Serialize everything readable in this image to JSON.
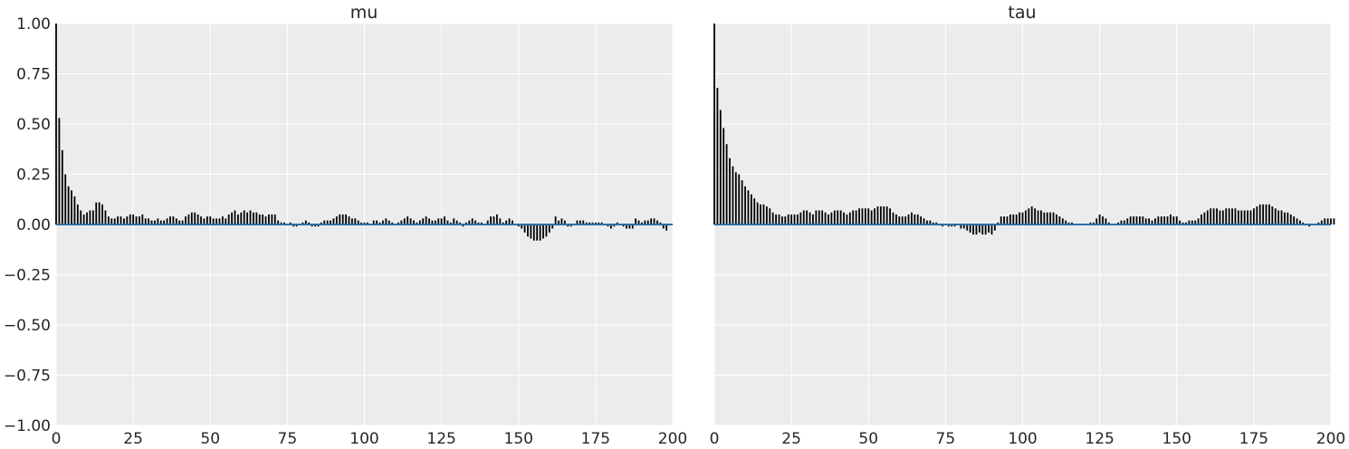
{
  "chart_data": [
    {
      "type": "bar",
      "title": "mu",
      "xlabel": "",
      "ylabel": "",
      "xlim": [
        0,
        200
      ],
      "ylim": [
        -1.0,
        1.0
      ],
      "xticks": [
        "0",
        "25",
        "50",
        "75",
        "100",
        "125",
        "150",
        "175",
        "200"
      ],
      "yticks": [
        "1.00",
        "0.75",
        "0.50",
        "0.25",
        "0.00",
        "−0.25",
        "−0.50",
        "−0.75",
        "−1.00"
      ],
      "grid": true,
      "lags_start": 0,
      "values": [
        1.0,
        0.53,
        0.37,
        0.25,
        0.19,
        0.17,
        0.14,
        0.1,
        0.07,
        0.05,
        0.06,
        0.07,
        0.07,
        0.11,
        0.11,
        0.1,
        0.07,
        0.04,
        0.03,
        0.03,
        0.04,
        0.04,
        0.03,
        0.04,
        0.05,
        0.05,
        0.04,
        0.04,
        0.05,
        0.03,
        0.03,
        0.02,
        0.02,
        0.03,
        0.02,
        0.02,
        0.03,
        0.04,
        0.04,
        0.03,
        0.02,
        0.02,
        0.04,
        0.05,
        0.06,
        0.06,
        0.05,
        0.04,
        0.03,
        0.04,
        0.04,
        0.03,
        0.03,
        0.03,
        0.04,
        0.03,
        0.05,
        0.06,
        0.07,
        0.05,
        0.06,
        0.07,
        0.06,
        0.07,
        0.06,
        0.06,
        0.05,
        0.05,
        0.04,
        0.05,
        0.05,
        0.05,
        0.02,
        0.01,
        0.01,
        0.0,
        0.01,
        -0.01,
        -0.01,
        0.0,
        0.01,
        0.02,
        0.01,
        -0.01,
        -0.01,
        -0.01,
        0.01,
        0.02,
        0.02,
        0.02,
        0.03,
        0.04,
        0.05,
        0.05,
        0.05,
        0.04,
        0.03,
        0.03,
        0.02,
        0.01,
        0.01,
        0.01,
        0.0,
        0.02,
        0.02,
        0.01,
        0.02,
        0.03,
        0.02,
        0.01,
        0.0,
        0.01,
        0.02,
        0.03,
        0.04,
        0.03,
        0.02,
        0.01,
        0.02,
        0.03,
        0.04,
        0.03,
        0.02,
        0.02,
        0.03,
        0.03,
        0.04,
        0.02,
        0.01,
        0.03,
        0.02,
        0.01,
        -0.01,
        0.01,
        0.02,
        0.03,
        0.02,
        0.01,
        0.01,
        0.0,
        0.02,
        0.04,
        0.04,
        0.05,
        0.03,
        0.01,
        0.02,
        0.03,
        0.02,
        0.0,
        -0.01,
        -0.02,
        -0.04,
        -0.06,
        -0.07,
        -0.08,
        -0.08,
        -0.08,
        -0.07,
        -0.06,
        -0.04,
        -0.02,
        0.04,
        0.02,
        0.03,
        0.02,
        -0.01,
        -0.01,
        0.0,
        0.02,
        0.02,
        0.02,
        0.01,
        0.01,
        0.01,
        0.01,
        0.01,
        0.01,
        0.0,
        -0.01,
        -0.02,
        -0.01,
        0.01,
        0.0,
        -0.01,
        -0.02,
        -0.02,
        -0.02,
        0.03,
        0.02,
        0.01,
        0.02,
        0.02,
        0.03,
        0.03,
        0.02,
        0.01,
        -0.02,
        -0.03
      ]
    },
    {
      "type": "bar",
      "title": "tau",
      "xlabel": "",
      "ylabel": "",
      "xlim": [
        0,
        200
      ],
      "ylim": [
        -1.0,
        1.0
      ],
      "xticks": [
        "0",
        "25",
        "50",
        "75",
        "100",
        "125",
        "150",
        "175",
        "200"
      ],
      "grid": true,
      "lags_start": 0,
      "values": [
        1.0,
        0.68,
        0.57,
        0.48,
        0.4,
        0.33,
        0.29,
        0.26,
        0.25,
        0.22,
        0.19,
        0.17,
        0.15,
        0.13,
        0.11,
        0.1,
        0.1,
        0.09,
        0.08,
        0.06,
        0.05,
        0.05,
        0.04,
        0.04,
        0.05,
        0.05,
        0.05,
        0.05,
        0.06,
        0.07,
        0.07,
        0.06,
        0.05,
        0.07,
        0.07,
        0.07,
        0.06,
        0.05,
        0.06,
        0.07,
        0.07,
        0.07,
        0.06,
        0.05,
        0.06,
        0.07,
        0.07,
        0.08,
        0.08,
        0.08,
        0.08,
        0.07,
        0.08,
        0.09,
        0.09,
        0.09,
        0.09,
        0.08,
        0.06,
        0.05,
        0.04,
        0.04,
        0.04,
        0.05,
        0.06,
        0.05,
        0.05,
        0.04,
        0.03,
        0.02,
        0.02,
        0.01,
        0.01,
        0.0,
        -0.01,
        0.0,
        -0.01,
        -0.01,
        -0.01,
        0.0,
        -0.02,
        -0.02,
        -0.03,
        -0.04,
        -0.05,
        -0.05,
        -0.04,
        -0.05,
        -0.05,
        -0.04,
        -0.05,
        -0.03,
        0.01,
        0.04,
        0.04,
        0.04,
        0.05,
        0.05,
        0.05,
        0.06,
        0.06,
        0.07,
        0.08,
        0.09,
        0.08,
        0.07,
        0.07,
        0.06,
        0.06,
        0.06,
        0.06,
        0.05,
        0.04,
        0.03,
        0.02,
        0.01,
        0.01,
        0.0,
        0.0,
        0.0,
        0.0,
        0.0,
        0.01,
        0.01,
        0.03,
        0.05,
        0.04,
        0.03,
        0.01,
        0.0,
        0.0,
        0.01,
        0.02,
        0.02,
        0.03,
        0.04,
        0.04,
        0.04,
        0.04,
        0.04,
        0.03,
        0.03,
        0.02,
        0.03,
        0.04,
        0.04,
        0.04,
        0.04,
        0.05,
        0.04,
        0.04,
        0.02,
        0.01,
        0.01,
        0.02,
        0.02,
        0.02,
        0.03,
        0.05,
        0.06,
        0.07,
        0.08,
        0.08,
        0.08,
        0.07,
        0.07,
        0.08,
        0.08,
        0.08,
        0.08,
        0.07,
        0.07,
        0.07,
        0.07,
        0.07,
        0.08,
        0.09,
        0.1,
        0.1,
        0.1,
        0.1,
        0.09,
        0.08,
        0.07,
        0.07,
        0.06,
        0.06,
        0.05,
        0.04,
        0.03,
        0.02,
        0.01,
        0.0,
        -0.01,
        0.0,
        0.0,
        0.01,
        0.02,
        0.03,
        0.03,
        0.03,
        0.03
      ]
    }
  ],
  "colors": {
    "panel_bg": "#ececec",
    "grid": "#ffffff",
    "bar": "#000000",
    "zero_line": "#2e6fa6",
    "text": "#262626"
  }
}
